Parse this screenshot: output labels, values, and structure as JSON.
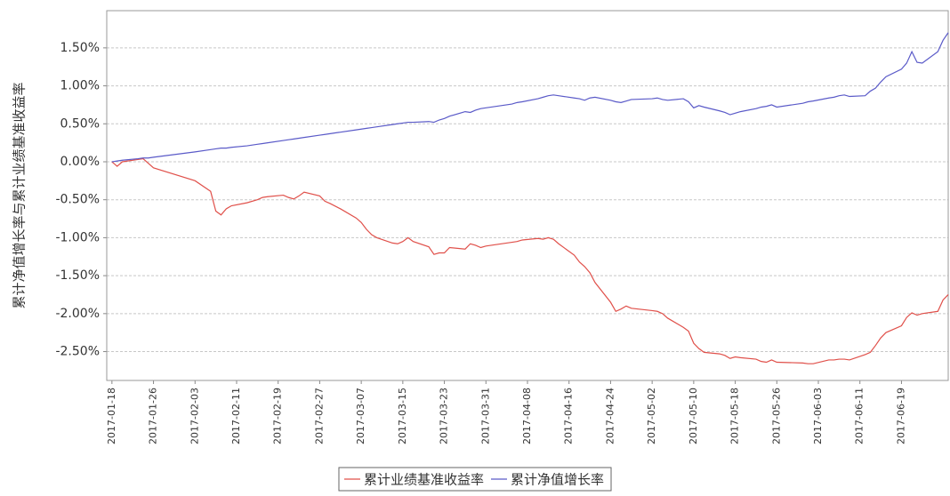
{
  "chart_data": {
    "type": "line",
    "y_label": "累计净值增长率与累计业绩基准收益率",
    "x": [
      "2017-01-18",
      "2017-01-19",
      "2017-01-20",
      "2017-01-23",
      "2017-01-24",
      "2017-01-25",
      "2017-01-26",
      "2017-02-03",
      "2017-02-06",
      "2017-02-07",
      "2017-02-08",
      "2017-02-09",
      "2017-02-10",
      "2017-02-13",
      "2017-02-15",
      "2017-02-16",
      "2017-02-17",
      "2017-02-20",
      "2017-02-21",
      "2017-02-22",
      "2017-02-23",
      "2017-02-24",
      "2017-02-27",
      "2017-02-28",
      "2017-03-01",
      "2017-03-03",
      "2017-03-06",
      "2017-03-07",
      "2017-03-08",
      "2017-03-09",
      "2017-03-10",
      "2017-03-13",
      "2017-03-14",
      "2017-03-15",
      "2017-03-16",
      "2017-03-17",
      "2017-03-20",
      "2017-03-21",
      "2017-03-22",
      "2017-03-23",
      "2017-03-24",
      "2017-03-27",
      "2017-03-28",
      "2017-03-29",
      "2017-03-30",
      "2017-03-31",
      "2017-04-05",
      "2017-04-06",
      "2017-04-07",
      "2017-04-10",
      "2017-04-11",
      "2017-04-12",
      "2017-04-13",
      "2017-04-14",
      "2017-04-17",
      "2017-04-18",
      "2017-04-19",
      "2017-04-20",
      "2017-04-21",
      "2017-04-24",
      "2017-04-25",
      "2017-04-26",
      "2017-04-27",
      "2017-04-28",
      "2017-05-02",
      "2017-05-03",
      "2017-05-04",
      "2017-05-05",
      "2017-05-08",
      "2017-05-09",
      "2017-05-10",
      "2017-05-11",
      "2017-05-12",
      "2017-05-15",
      "2017-05-16",
      "2017-05-17",
      "2017-05-18",
      "2017-05-19",
      "2017-05-22",
      "2017-05-23",
      "2017-05-24",
      "2017-05-25",
      "2017-05-26",
      "2017-05-31",
      "2017-06-01",
      "2017-06-02",
      "2017-06-05",
      "2017-06-06",
      "2017-06-07",
      "2017-06-08",
      "2017-06-09",
      "2017-06-12",
      "2017-06-13",
      "2017-06-14",
      "2017-06-15",
      "2017-06-16",
      "2017-06-19",
      "2017-06-20",
      "2017-06-21",
      "2017-06-22",
      "2017-06-23",
      "2017-06-26",
      "2017-06-27",
      "2017-06-28"
    ],
    "series": [
      {
        "name": "累计业绩基准收益率",
        "color": "#e0504a",
        "values": [
          0,
          -0.06,
          0,
          0.03,
          0.04,
          -0.02,
          -0.08,
          -0.25,
          -0.39,
          -0.65,
          -0.7,
          -0.62,
          -0.58,
          -0.54,
          -0.5,
          -0.47,
          -0.46,
          -0.44,
          -0.47,
          -0.49,
          -0.45,
          -0.4,
          -0.45,
          -0.52,
          -0.55,
          -0.62,
          -0.74,
          -0.8,
          -0.89,
          -0.96,
          -1.0,
          -1.07,
          -1.08,
          -1.05,
          -1.0,
          -1.05,
          -1.12,
          -1.22,
          -1.2,
          -1.2,
          -1.13,
          -1.15,
          -1.08,
          -1.1,
          -1.13,
          -1.11,
          -1.06,
          -1.05,
          -1.03,
          -1.01,
          -1.02,
          -1.0,
          -1.02,
          -1.08,
          -1.23,
          -1.32,
          -1.38,
          -1.46,
          -1.59,
          -1.85,
          -1.97,
          -1.94,
          -1.9,
          -1.93,
          -1.96,
          -1.97,
          -2.0,
          -2.06,
          -2.18,
          -2.23,
          -2.39,
          -2.46,
          -2.51,
          -2.53,
          -2.55,
          -2.59,
          -2.57,
          -2.58,
          -2.6,
          -2.63,
          -2.64,
          -2.61,
          -2.64,
          -2.65,
          -2.66,
          -2.66,
          -2.61,
          -2.61,
          -2.6,
          -2.6,
          -2.61,
          -2.54,
          -2.51,
          -2.42,
          -2.32,
          -2.25,
          -2.16,
          -2.05,
          -1.99,
          -2.02,
          -2.0,
          -1.97,
          -1.82,
          -1.75
        ]
      },
      {
        "name": "累计净值增长率",
        "color": "#5a5ac8",
        "values": [
          0,
          0.01,
          0.02,
          0.04,
          0.05,
          0.05,
          0.06,
          0.13,
          0.16,
          0.17,
          0.18,
          0.18,
          0.19,
          0.21,
          0.23,
          0.24,
          0.25,
          0.28,
          0.29,
          0.3,
          0.31,
          0.32,
          0.35,
          0.36,
          0.37,
          0.39,
          0.42,
          0.43,
          0.44,
          0.45,
          0.46,
          0.49,
          0.5,
          0.51,
          0.52,
          0.52,
          0.53,
          0.52,
          0.55,
          0.57,
          0.6,
          0.66,
          0.65,
          0.68,
          0.7,
          0.71,
          0.76,
          0.78,
          0.79,
          0.83,
          0.85,
          0.87,
          0.88,
          0.87,
          0.84,
          0.83,
          0.81,
          0.84,
          0.85,
          0.81,
          0.79,
          0.78,
          0.8,
          0.82,
          0.83,
          0.84,
          0.82,
          0.81,
          0.83,
          0.79,
          0.71,
          0.74,
          0.72,
          0.67,
          0.65,
          0.62,
          0.64,
          0.66,
          0.7,
          0.72,
          0.73,
          0.75,
          0.72,
          0.77,
          0.79,
          0.8,
          0.84,
          0.85,
          0.87,
          0.88,
          0.86,
          0.87,
          0.93,
          0.97,
          1.05,
          1.12,
          1.22,
          1.3,
          1.45,
          1.31,
          1.3,
          1.45,
          1.6,
          1.7
        ]
      }
    ],
    "xlim": [
      "2017-01-17",
      "2017-06-28"
    ],
    "xticks": [
      "2017-01-18",
      "2017-01-26",
      "2017-02-03",
      "2017-02-11",
      "2017-02-19",
      "2017-02-27",
      "2017-03-07",
      "2017-03-15",
      "2017-03-23",
      "2017-03-31",
      "2017-04-08",
      "2017-04-16",
      "2017-04-24",
      "2017-05-02",
      "2017-05-10",
      "2017-05-18",
      "2017-05-26",
      "2017-06-03",
      "2017-06-11",
      "2017-06-19"
    ],
    "ylim": [
      -2.88,
      1.99
    ],
    "yticks": [
      {
        "value": -2.5,
        "label": "-2.50%"
      },
      {
        "value": -2,
        "label": "-2.00%"
      },
      {
        "value": -1.5,
        "label": "-1.50%"
      },
      {
        "value": -1,
        "label": "-1.00%"
      },
      {
        "value": -0.5,
        "label": "-0.50%"
      },
      {
        "value": 0,
        "label": "0.00%"
      },
      {
        "value": 0.5,
        "label": "0.50%"
      },
      {
        "value": 1,
        "label": "1.00%"
      },
      {
        "value": 1.5,
        "label": "1.50%"
      }
    ],
    "grid": true
  }
}
